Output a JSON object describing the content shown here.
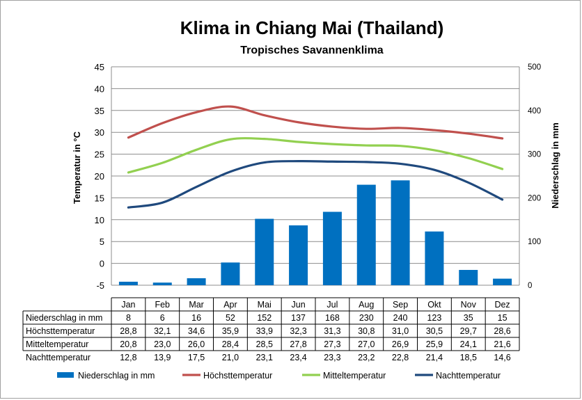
{
  "chart_data": {
    "type": "bar+line",
    "title": "Klima in Chiang Mai (Thailand)",
    "subtitle": "Tropisches Savannenklima",
    "ylabel_left": "Temperatur in °C",
    "ylabel_right": "Niederschlag in mm",
    "ylim_left": [
      -5,
      45
    ],
    "ylim_right": [
      0,
      500
    ],
    "yticks_left": [
      "45",
      "40",
      "35",
      "30",
      "25",
      "20",
      "15",
      "10",
      "5",
      "0",
      "-5"
    ],
    "yticks_right": [
      "500",
      "400",
      "300",
      "200",
      "100",
      "0"
    ],
    "categories": [
      "Jan",
      "Feb",
      "Mar",
      "Apr",
      "Mai",
      "Jun",
      "Jul",
      "Aug",
      "Sep",
      "Okt",
      "Nov",
      "Dez"
    ],
    "grid": true,
    "legend_position": "bottom",
    "series": [
      {
        "name": "Niederschlag in mm",
        "kind": "bar",
        "axis": "right",
        "color": "#0070c0",
        "values": [
          8,
          6,
          16,
          52,
          152,
          137,
          168,
          230,
          240,
          123,
          35,
          15
        ],
        "labels": [
          "8",
          "6",
          "16",
          "52",
          "152",
          "137",
          "168",
          "230",
          "240",
          "123",
          "35",
          "15"
        ]
      },
      {
        "name": "Höchsttemperatur",
        "kind": "line",
        "axis": "left",
        "color": "#c0504d",
        "values": [
          28.8,
          32.1,
          34.6,
          35.9,
          33.9,
          32.3,
          31.3,
          30.8,
          31.0,
          30.5,
          29.7,
          28.6
        ],
        "labels": [
          "28,8",
          "32,1",
          "34,6",
          "35,9",
          "33,9",
          "32,3",
          "31,3",
          "30,8",
          "31,0",
          "30,5",
          "29,7",
          "28,6"
        ]
      },
      {
        "name": "Mitteltemperatur",
        "kind": "line",
        "axis": "left",
        "color": "#92d050",
        "values": [
          20.8,
          23.0,
          26.0,
          28.4,
          28.5,
          27.8,
          27.3,
          27.0,
          26.9,
          25.9,
          24.1,
          21.6
        ],
        "labels": [
          "20,8",
          "23,0",
          "26,0",
          "28,4",
          "28,5",
          "27,8",
          "27,3",
          "27,0",
          "26,9",
          "25,9",
          "24,1",
          "21,6"
        ]
      },
      {
        "name": "Nachttemperatur",
        "kind": "line",
        "axis": "left",
        "color": "#1f497d",
        "values": [
          12.8,
          13.9,
          17.5,
          21.0,
          23.1,
          23.4,
          23.3,
          23.2,
          22.8,
          21.4,
          18.5,
          14.6
        ],
        "labels": [
          "12,8",
          "13,9",
          "17,5",
          "21,0",
          "23,1",
          "23,4",
          "23,3",
          "23,2",
          "22,8",
          "21,4",
          "18,5",
          "14,6"
        ]
      }
    ]
  }
}
